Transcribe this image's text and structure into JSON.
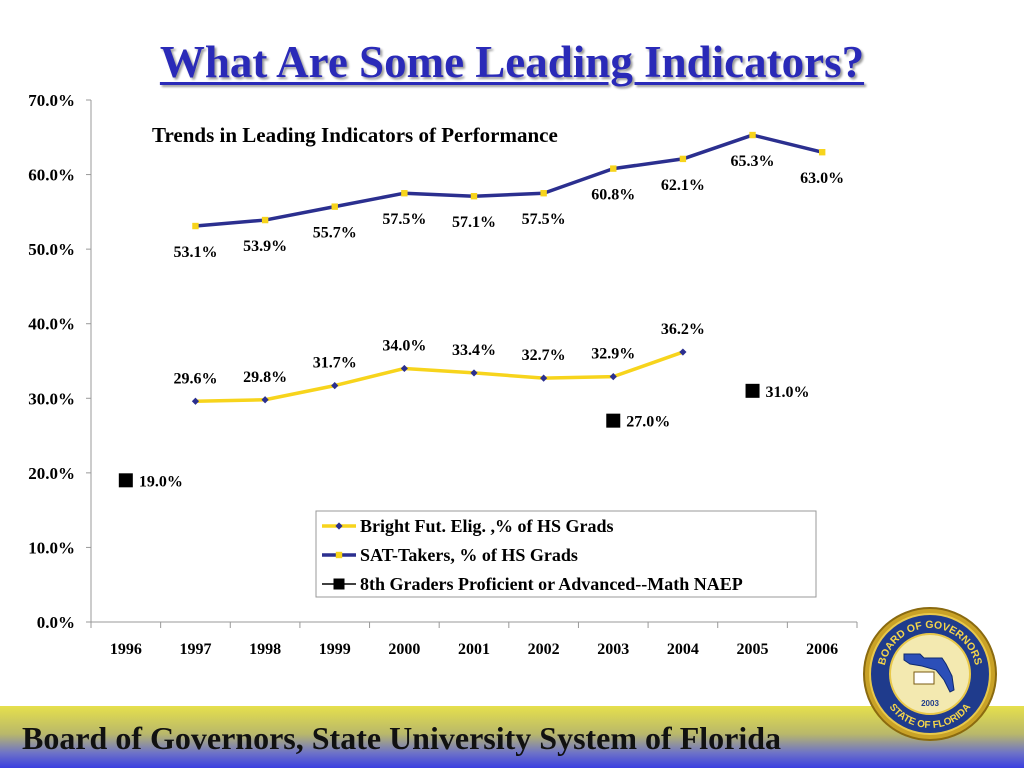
{
  "title": "What Are Some Leading Indicators?",
  "footer": "Board of Governors, State University System of Florida",
  "seal": {
    "top_text": "BOARD OF GOVERNORS",
    "bottom_text": "STATE OF FLORIDA",
    "year": "2003"
  },
  "colors": {
    "title": "#2a2ab8",
    "navy": "#2b2f8f",
    "gold": "#f7d41c",
    "black": "#000000"
  },
  "chart_data": {
    "type": "line",
    "title": "Trends in Leading Indicators of Performance",
    "categories": [
      "1996",
      "1997",
      "1998",
      "1999",
      "2000",
      "2001",
      "2002",
      "2003",
      "2004",
      "2005",
      "2006"
    ],
    "y_ticks": [
      "0.0%",
      "10.0%",
      "20.0%",
      "30.0%",
      "40.0%",
      "50.0%",
      "60.0%",
      "70.0%"
    ],
    "ylim": [
      0,
      70
    ],
    "grid": false,
    "legend_position": "bottom-right",
    "series": [
      {
        "name": "Bright Fut. Elig. ,% of HS Grads",
        "line_color": "#f7d41c",
        "marker_color": "#2b2f8f",
        "marker": "diamond",
        "values": [
          null,
          29.6,
          29.8,
          31.7,
          34.0,
          33.4,
          32.7,
          32.9,
          36.2,
          null,
          null
        ],
        "labels": [
          null,
          "29.6%",
          "29.8%",
          "31.7%",
          "34.0%",
          "33.4%",
          "32.7%",
          "32.9%",
          "36.2%",
          null,
          null
        ]
      },
      {
        "name": "SAT-Takers, % of HS Grads",
        "line_color": "#2b2f8f",
        "marker_color": "#f7d41c",
        "marker": "square",
        "values": [
          null,
          53.1,
          53.9,
          55.7,
          57.5,
          57.1,
          57.5,
          60.8,
          62.1,
          65.3,
          63.0
        ],
        "labels": [
          null,
          "53.1%",
          "53.9%",
          "55.7%",
          "57.5%",
          "57.1%",
          "57.5%",
          "60.8%",
          "62.1%",
          "65.3%",
          "63.0%"
        ]
      },
      {
        "name": "8th Graders Proficient or Advanced--Math NAEP",
        "line_color": "#000000",
        "marker_color": "#000000",
        "marker": "square",
        "values": [
          19.0,
          null,
          null,
          null,
          null,
          null,
          null,
          27.0,
          null,
          31.0,
          null
        ],
        "labels": [
          "19.0%",
          null,
          null,
          null,
          null,
          null,
          null,
          "27.0%",
          null,
          "31.0%",
          null
        ]
      }
    ]
  }
}
